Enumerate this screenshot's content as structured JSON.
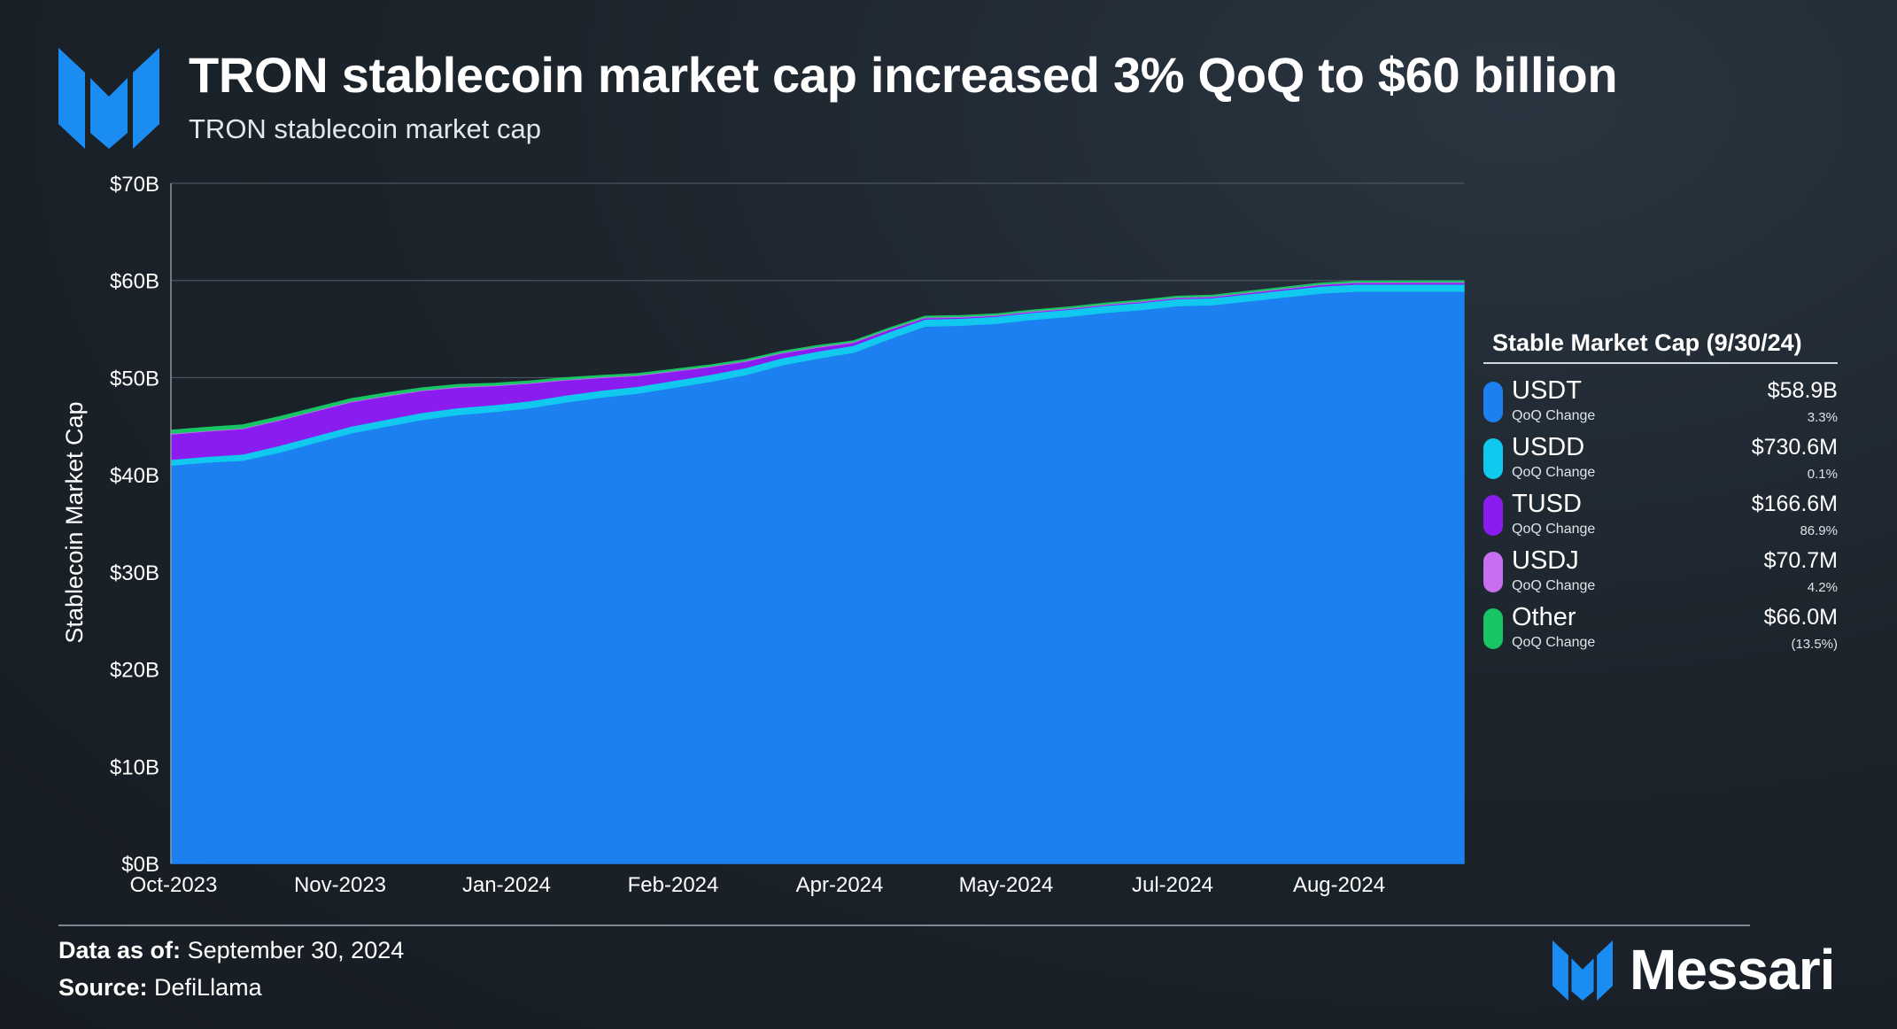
{
  "title": "TRON stablecoin market cap increased 3% QoQ to $60 billion",
  "subtitle": "TRON stablecoin market cap",
  "colors": {
    "USDT": "#1c80f0",
    "USDD": "#11c8ee",
    "TUSD": "#8a1cf0",
    "USDJ": "#c86ef0",
    "Other": "#17c564",
    "accent": "#1b8cf2"
  },
  "chart_data": {
    "type": "area",
    "stacked": true,
    "title": "TRON stablecoin market cap",
    "xlabel": "",
    "ylabel": "Stablecoin Market Cap",
    "ylim": [
      0,
      70
    ],
    "y_unit": "$B",
    "y_ticks": [
      "$0B",
      "$10B",
      "$20B",
      "$30B",
      "$40B",
      "$50B",
      "$60B",
      "$70B"
    ],
    "x_ticks": [
      "Oct-2023",
      "Nov-2023",
      "Jan-2024",
      "Feb-2024",
      "Apr-2024",
      "May-2024",
      "Jul-2024",
      "Aug-2024"
    ],
    "x": [
      0,
      10,
      20,
      30,
      40,
      50,
      60,
      70,
      80,
      90,
      100,
      110,
      120,
      130,
      140,
      150,
      160,
      170,
      180,
      190,
      200,
      210,
      220,
      230,
      240,
      250,
      260,
      270,
      280,
      290,
      300,
      310,
      320,
      330,
      340,
      350,
      360
    ],
    "series": [
      {
        "name": "USDT",
        "values": [
          41.0,
          41.3,
          41.5,
          42.3,
          43.3,
          44.3,
          45.0,
          45.7,
          46.2,
          46.5,
          46.9,
          47.5,
          48.0,
          48.4,
          49.0,
          49.6,
          50.3,
          51.3,
          52.0,
          52.6,
          54.0,
          55.3,
          55.4,
          55.6,
          56.0,
          56.3,
          56.7,
          57.0,
          57.4,
          57.5,
          57.9,
          58.3,
          58.7,
          58.9,
          58.9,
          58.9,
          58.9
        ]
      },
      {
        "name": "USDD",
        "values": [
          0.6,
          0.6,
          0.65,
          0.7,
          0.7,
          0.7,
          0.72,
          0.72,
          0.72,
          0.72,
          0.72,
          0.72,
          0.72,
          0.72,
          0.72,
          0.72,
          0.73,
          0.73,
          0.73,
          0.73,
          0.73,
          0.73,
          0.73,
          0.73,
          0.73,
          0.73,
          0.73,
          0.73,
          0.73,
          0.73,
          0.73,
          0.73,
          0.73,
          0.73,
          0.73,
          0.73,
          0.73
        ]
      },
      {
        "name": "TUSD",
        "values": [
          2.6,
          2.6,
          2.6,
          2.6,
          2.55,
          2.5,
          2.4,
          2.25,
          2.1,
          1.95,
          1.8,
          1.55,
          1.3,
          1.1,
          0.95,
          0.8,
          0.65,
          0.5,
          0.4,
          0.3,
          0.22,
          0.14,
          0.1,
          0.09,
          0.08,
          0.08,
          0.08,
          0.09,
          0.09,
          0.1,
          0.11,
          0.12,
          0.14,
          0.15,
          0.16,
          0.17,
          0.17
        ]
      },
      {
        "name": "USDJ",
        "values": [
          0.07,
          0.07,
          0.07,
          0.07,
          0.07,
          0.07,
          0.07,
          0.07,
          0.07,
          0.07,
          0.07,
          0.07,
          0.07,
          0.07,
          0.07,
          0.07,
          0.07,
          0.07,
          0.07,
          0.07,
          0.07,
          0.07,
          0.07,
          0.07,
          0.07,
          0.07,
          0.07,
          0.07,
          0.07,
          0.07,
          0.07,
          0.07,
          0.07,
          0.07,
          0.07,
          0.07,
          0.07
        ]
      },
      {
        "name": "Other",
        "values": [
          0.3,
          0.3,
          0.3,
          0.28,
          0.26,
          0.24,
          0.22,
          0.2,
          0.18,
          0.16,
          0.15,
          0.14,
          0.12,
          0.11,
          0.1,
          0.09,
          0.09,
          0.08,
          0.08,
          0.07,
          0.07,
          0.07,
          0.07,
          0.07,
          0.07,
          0.07,
          0.07,
          0.07,
          0.07,
          0.07,
          0.07,
          0.07,
          0.07,
          0.07,
          0.07,
          0.07,
          0.07
        ]
      }
    ]
  },
  "legend": {
    "title": "Stable Market Cap (9/30/24)",
    "items": [
      {
        "name": "USDT",
        "sub": "QoQ Change",
        "value": "$58.9B",
        "change": "3.3%"
      },
      {
        "name": "USDD",
        "sub": "QoQ Change",
        "value": "$730.6M",
        "change": "0.1%"
      },
      {
        "name": "TUSD",
        "sub": "QoQ Change",
        "value": "$166.6M",
        "change": "86.9%"
      },
      {
        "name": "USDJ",
        "sub": "QoQ Change",
        "value": "$70.7M",
        "change": "4.2%"
      },
      {
        "name": "Other",
        "sub": "QoQ Change",
        "value": "$66.0M",
        "change": "(13.5%)"
      }
    ]
  },
  "footer": {
    "data_label": "Data as of:",
    "data_value": "September 30, 2024",
    "source_label": "Source:",
    "source_value": "DefiLlama",
    "brand": "Messari"
  }
}
